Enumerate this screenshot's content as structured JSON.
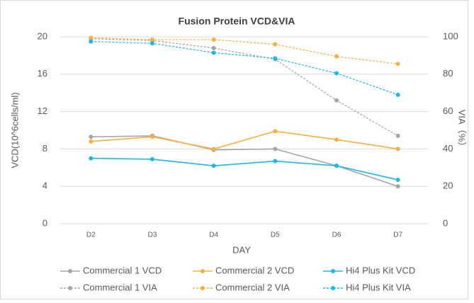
{
  "chart_data": {
    "type": "line",
    "title": "Fusion Protein VCD&VIA",
    "x_label": "DAY",
    "y_label": "VCD(10^6cells/ml)",
    "y2_label": "VIA（%）",
    "categories": [
      "D2",
      "D3",
      "D4",
      "D5",
      "D6",
      "D7"
    ],
    "ylim": [
      0,
      20
    ],
    "yticks": [
      0,
      4,
      8,
      12,
      16,
      20
    ],
    "y2lim": [
      0,
      100
    ],
    "y2ticks": [
      0,
      20,
      40,
      60,
      80,
      100
    ],
    "grid": true,
    "legend": "bottom",
    "series": [
      {
        "name": "Commercial 1 VCD",
        "color": "#a5a5a5",
        "dashed": false,
        "values": [
          9.3,
          9.4,
          7.9,
          8.0,
          6.2,
          4.0
        ]
      },
      {
        "name": "Commercial 2 VCD",
        "color": "#f5b041",
        "dashed": false,
        "values": [
          8.8,
          9.3,
          8.0,
          9.9,
          9.0,
          8.0
        ]
      },
      {
        "name": "Hi4 Plus Kit  VCD",
        "color": "#1db7e9",
        "dashed": false,
        "values": [
          7.0,
          6.9,
          6.2,
          6.7,
          6.2,
          4.7
        ]
      },
      {
        "name": "Commercial 1 VIA",
        "color": "#a5a5a5",
        "dashed": true,
        "axis": "y2",
        "values": [
          99,
          98,
          94,
          88,
          66,
          47
        ]
      },
      {
        "name": "Commercial 2 VIA",
        "color": "#f5b041",
        "dashed": true,
        "axis": "y2",
        "values": [
          99.5,
          98.5,
          98.5,
          96,
          89.5,
          85.5
        ]
      },
      {
        "name": "Hi4 Plus Kit VIA",
        "color": "#1db7e9",
        "dashed": true,
        "axis": "y2",
        "values": [
          97.5,
          96.5,
          91.5,
          88.5,
          80.5,
          69
        ]
      }
    ]
  }
}
